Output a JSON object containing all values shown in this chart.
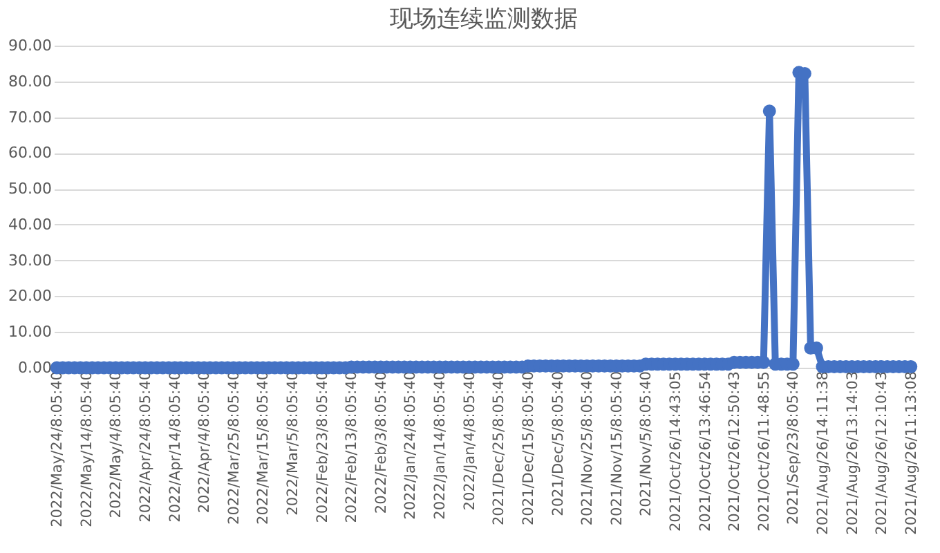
{
  "chart_data": {
    "type": "line",
    "title": "现场连续监测数据",
    "categories": [
      "2022/May/24/8:05:40",
      null,
      null,
      null,
      null,
      "2022/May/14/8:05:40",
      null,
      null,
      null,
      null,
      "2022/May/4/8:05:40",
      null,
      null,
      null,
      null,
      "2022/Apr/24/8:05:40",
      null,
      null,
      null,
      null,
      "2022/Apr/14/8:05:40",
      null,
      null,
      null,
      null,
      "2022/Apr/4/8:05:40",
      null,
      null,
      null,
      null,
      "2022/Mar/25/8:05:40",
      null,
      null,
      null,
      null,
      "2022/Mar/15/8:05:40",
      null,
      null,
      null,
      null,
      "2022/Mar/5/8:05:40",
      null,
      null,
      null,
      null,
      "2022/Feb/23/8:05:40",
      null,
      null,
      null,
      null,
      "2022/Feb/13/8:05:40",
      null,
      null,
      null,
      null,
      "2022/Feb/3/8:05:40",
      null,
      null,
      null,
      null,
      "2022/Jan/24/8:05:40",
      null,
      null,
      null,
      null,
      "2022/Jan/14/8:05:40",
      null,
      null,
      null,
      null,
      "2022/Jan/4/8:05:40",
      null,
      null,
      null,
      null,
      "2021/Dec/25/8:05:40",
      null,
      null,
      null,
      null,
      "2021/Dec/15/8:05:40",
      null,
      null,
      null,
      null,
      "2021/Dec/5/8:05:40",
      null,
      null,
      null,
      null,
      "2021/Nov/25/8:05:40",
      null,
      null,
      null,
      null,
      "2021/Nov/15/8:05:40",
      null,
      null,
      null,
      null,
      "2021/Nov/5/8:05:40",
      null,
      null,
      null,
      null,
      "2021/Oct/26/14:43:05",
      null,
      null,
      null,
      null,
      "2021/Oct/26/13:46:54",
      null,
      null,
      null,
      null,
      "2021/Oct/26/12:50:43",
      null,
      null,
      null,
      null,
      "2021/Oct/26/11:48:55",
      null,
      null,
      null,
      null,
      "2021/Sep/23/8:05:40",
      null,
      null,
      null,
      null,
      "2021/Aug/26/14:11:38",
      null,
      null,
      null,
      null,
      "2021/Aug/26/13:14:03",
      null,
      null,
      null,
      null,
      "2021/Aug/26/12:10:43",
      null,
      null,
      null,
      null,
      "2021/Aug/26/11:13:08"
    ],
    "series": [
      {
        "color": "#4472c4",
        "values": [
          0,
          0,
          0,
          0,
          0,
          0,
          0,
          0,
          0,
          0,
          0,
          0,
          0,
          0,
          0,
          0,
          0,
          0,
          0,
          0,
          0,
          0,
          0,
          0,
          0,
          0,
          0,
          0,
          0,
          0,
          0,
          0,
          0,
          0,
          0,
          0,
          0,
          0,
          0,
          0,
          0,
          0,
          0,
          0,
          0,
          0,
          0,
          0,
          0,
          0,
          0.2,
          0.2,
          0.2,
          0.2,
          0.2,
          0.2,
          0.2,
          0.2,
          0.2,
          0.2,
          0.2,
          0.2,
          0.2,
          0.2,
          0.2,
          0.2,
          0.2,
          0.2,
          0.2,
          0.2,
          0.2,
          0.2,
          0.2,
          0.2,
          0.2,
          0.2,
          0.2,
          0.2,
          0.2,
          0.2,
          0.5,
          0.5,
          0.5,
          0.5,
          0.5,
          0.5,
          0.5,
          0.5,
          0.5,
          0.5,
          0.5,
          0.5,
          0.5,
          0.5,
          0.5,
          0.5,
          0.5,
          0.5,
          0.5,
          0.5,
          1.0,
          1.0,
          1.0,
          1.0,
          1.0,
          1.0,
          1.0,
          1.0,
          1.0,
          1.0,
          1.0,
          1.0,
          1.0,
          1.0,
          1.0,
          1.5,
          1.5,
          1.5,
          1.5,
          1.5,
          1.5,
          71.7,
          1.0,
          1.0,
          1.0,
          1.0,
          82.5,
          82.2,
          5.5,
          5.5,
          0.3,
          0.3,
          0.3,
          0.3,
          0.3,
          0.3,
          0.3,
          0.3,
          0.3,
          0.3,
          0.3,
          0.3,
          0.3,
          0.3,
          0.3,
          0.3
        ]
      }
    ],
    "ylim": [
      0,
      90
    ],
    "yticks": [
      {
        "value": 0,
        "label": "0.00"
      },
      {
        "value": 10,
        "label": "10.00"
      },
      {
        "value": 20,
        "label": "20.00"
      },
      {
        "value": 30,
        "label": "30.00"
      },
      {
        "value": 40,
        "label": "40.00"
      },
      {
        "value": 50,
        "label": "50.00"
      },
      {
        "value": 60,
        "label": "60.00"
      },
      {
        "value": 70,
        "label": "70.00"
      },
      {
        "value": 80,
        "label": "80.00"
      },
      {
        "value": 90,
        "label": "90.00"
      }
    ],
    "grid": "y",
    "marker": "circle",
    "line_style": "solid"
  }
}
